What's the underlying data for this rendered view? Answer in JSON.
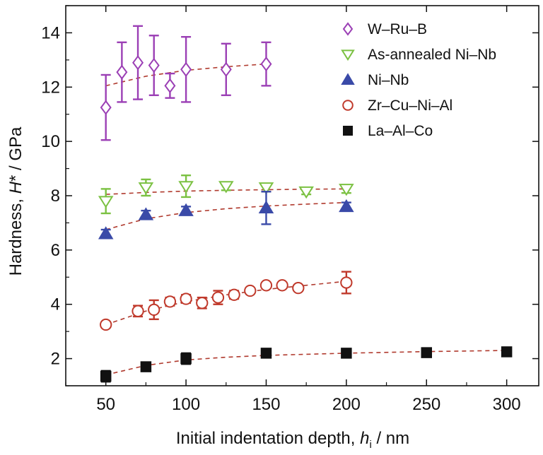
{
  "chart_data": {
    "type": "scatter",
    "title": "",
    "xlabel": {
      "prefix": "Initial indentation depth, ",
      "symbol": "h",
      "subscript": "i",
      "suffix": " / nm"
    },
    "ylabel": {
      "prefix": "Hardness, ",
      "symbol": "H",
      "suffix": "* / GPa"
    },
    "xlim": [
      25,
      320
    ],
    "ylim": [
      1.0,
      15.0
    ],
    "xticks": [
      50,
      100,
      150,
      200,
      250,
      300
    ],
    "yticks": [
      2,
      4,
      6,
      8,
      10,
      12,
      14
    ],
    "grid": false,
    "legend_position": "top-right",
    "series": [
      {
        "name": "W–Ru–B",
        "marker": "diamond",
        "filled": false,
        "color": "#9b3fb5",
        "points": [
          {
            "x": 50,
            "y": 11.25,
            "err": 1.2
          },
          {
            "x": 60,
            "y": 12.55,
            "err": 1.1
          },
          {
            "x": 70,
            "y": 12.9,
            "err": 1.35
          },
          {
            "x": 80,
            "y": 12.8,
            "err": 1.1
          },
          {
            "x": 90,
            "y": 12.05,
            "err": 0.45
          },
          {
            "x": 100,
            "y": 12.65,
            "err": 1.2
          },
          {
            "x": 125,
            "y": 12.65,
            "err": 0.95
          },
          {
            "x": 150,
            "y": 12.85,
            "err": 0.8
          }
        ],
        "fit": [
          [
            50,
            12.05
          ],
          [
            75,
            12.4
          ],
          [
            100,
            12.62
          ],
          [
            125,
            12.75
          ],
          [
            150,
            12.85
          ]
        ]
      },
      {
        "name": "As-annealed Ni–Nb",
        "marker": "triangle-down",
        "filled": false,
        "color": "#7bc142",
        "points": [
          {
            "x": 50,
            "y": 7.8,
            "err": 0.45
          },
          {
            "x": 75,
            "y": 8.3,
            "err": 0.3
          },
          {
            "x": 100,
            "y": 8.35,
            "err": 0.4
          },
          {
            "x": 125,
            "y": 8.35,
            "err": 0.15
          },
          {
            "x": 150,
            "y": 8.3,
            "err": 0.15
          },
          {
            "x": 175,
            "y": 8.15,
            "err": 0.1
          },
          {
            "x": 200,
            "y": 8.25,
            "err": 0.15
          }
        ],
        "fit": [
          [
            50,
            8.05
          ],
          [
            75,
            8.12
          ],
          [
            100,
            8.17
          ],
          [
            125,
            8.2
          ],
          [
            150,
            8.22
          ],
          [
            175,
            8.24
          ],
          [
            200,
            8.25
          ]
        ]
      },
      {
        "name": "Ni–Nb",
        "marker": "triangle-up",
        "filled": true,
        "color": "#3a4aa8",
        "points": [
          {
            "x": 50,
            "y": 6.6,
            "err": 0.15
          },
          {
            "x": 75,
            "y": 7.3,
            "err": 0.15
          },
          {
            "x": 100,
            "y": 7.45,
            "err": 0.15
          },
          {
            "x": 150,
            "y": 7.55,
            "err": 0.6
          },
          {
            "x": 200,
            "y": 7.6,
            "err": 0.15
          }
        ],
        "fit": [
          [
            50,
            6.75
          ],
          [
            75,
            7.15
          ],
          [
            100,
            7.38
          ],
          [
            125,
            7.52
          ],
          [
            150,
            7.62
          ],
          [
            175,
            7.69
          ],
          [
            200,
            7.75
          ]
        ]
      },
      {
        "name": "Zr–Cu–Ni–Al",
        "marker": "circle",
        "filled": false,
        "color": "#c0392b",
        "points": [
          {
            "x": 50,
            "y": 3.25,
            "err": 0.1
          },
          {
            "x": 70,
            "y": 3.75,
            "err": 0.2
          },
          {
            "x": 80,
            "y": 3.8,
            "err": 0.35
          },
          {
            "x": 90,
            "y": 4.1,
            "err": 0.15
          },
          {
            "x": 100,
            "y": 4.2,
            "err": 0.15
          },
          {
            "x": 110,
            "y": 4.05,
            "err": 0.2
          },
          {
            "x": 120,
            "y": 4.25,
            "err": 0.25
          },
          {
            "x": 130,
            "y": 4.35,
            "err": 0.15
          },
          {
            "x": 140,
            "y": 4.5,
            "err": 0.1
          },
          {
            "x": 150,
            "y": 4.7,
            "err": 0.1
          },
          {
            "x": 160,
            "y": 4.7,
            "err": 0.1
          },
          {
            "x": 170,
            "y": 4.6,
            "err": 0.1
          },
          {
            "x": 200,
            "y": 4.8,
            "err": 0.4
          }
        ],
        "fit": [
          [
            50,
            3.25
          ],
          [
            75,
            3.75
          ],
          [
            100,
            4.1
          ],
          [
            125,
            4.35
          ],
          [
            150,
            4.55
          ],
          [
            175,
            4.7
          ],
          [
            200,
            4.85
          ]
        ]
      },
      {
        "name": "La–Al–Co",
        "marker": "square",
        "filled": true,
        "color": "#111111",
        "points": [
          {
            "x": 50,
            "y": 1.35,
            "err": 0.2
          },
          {
            "x": 75,
            "y": 1.7,
            "err": 0.1
          },
          {
            "x": 100,
            "y": 2.0,
            "err": 0.2
          },
          {
            "x": 150,
            "y": 2.2,
            "err": 0.1
          },
          {
            "x": 200,
            "y": 2.2,
            "err": 0.1
          },
          {
            "x": 250,
            "y": 2.22,
            "err": 0.08
          },
          {
            "x": 300,
            "y": 2.25,
            "err": 0.1
          }
        ],
        "fit": [
          [
            50,
            1.4
          ],
          [
            75,
            1.75
          ],
          [
            100,
            1.95
          ],
          [
            125,
            2.05
          ],
          [
            150,
            2.12
          ],
          [
            200,
            2.2
          ],
          [
            250,
            2.26
          ],
          [
            300,
            2.3
          ]
        ]
      }
    ]
  }
}
